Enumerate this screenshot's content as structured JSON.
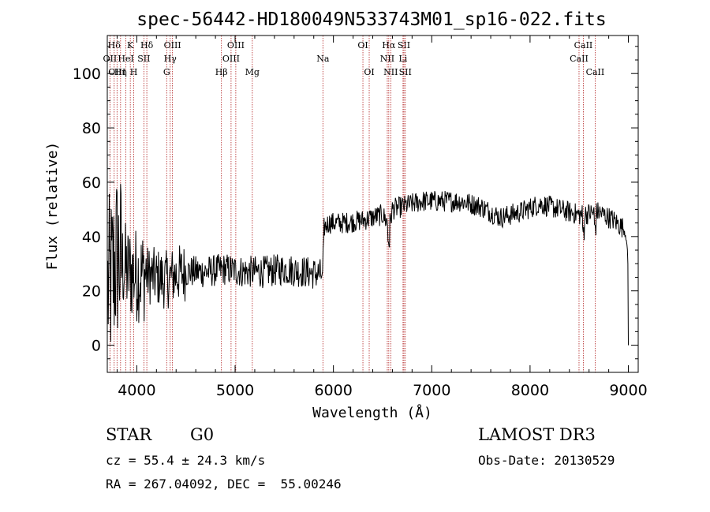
{
  "chart_data": {
    "type": "line",
    "title": "spec-56442-HD180049N533743M01_sp16-022.fits",
    "xlabel": "Wavelength (Å)",
    "ylabel": "Flux (relative)",
    "xlim": [
      3700,
      9100
    ],
    "ylim": [
      -10,
      114
    ],
    "x_ticks": [
      4000,
      5000,
      6000,
      7000,
      8000,
      9000
    ],
    "x_tick_labels": [
      "4000",
      "5000",
      "6000",
      "7000",
      "8000",
      "9000"
    ],
    "y_ticks": [
      0,
      20,
      40,
      60,
      80,
      100
    ],
    "y_tick_labels": [
      "0",
      "20",
      "40",
      "60",
      "80",
      "100"
    ],
    "spectrum_anchors": {
      "x": [
        3700,
        3750,
        3800,
        3850,
        3900,
        4000,
        4100,
        4200,
        4300,
        4400,
        4500,
        4700,
        4900,
        5100,
        5300,
        5500,
        5700,
        5880,
        5900,
        5950,
        6100,
        6300,
        6500,
        6570,
        6600,
        6700,
        6900,
        7100,
        7300,
        7500,
        7700,
        7900,
        8100,
        8300,
        8500,
        8700,
        8850,
        8950,
        8980,
        8995,
        9000
      ],
      "y": [
        20,
        25,
        33,
        30,
        27,
        26,
        26,
        25,
        24,
        26,
        27,
        27,
        28,
        27,
        27,
        28,
        27,
        26,
        43,
        45,
        45,
        46,
        48,
        44,
        50,
        51,
        53,
        53,
        53,
        51,
        47,
        49,
        52,
        50,
        48,
        49,
        46,
        43,
        40,
        30,
        0
      ]
    },
    "spectral_lines": [
      {
        "name": "Hδ",
        "x": 3770,
        "row": 0
      },
      {
        "name": "K",
        "x": 3934,
        "row": 0
      },
      {
        "name": "Hδ",
        "x": 4102,
        "row": 0
      },
      {
        "name": "OIII",
        "x": 4363,
        "row": 0
      },
      {
        "name": "OIII",
        "x": 5007,
        "row": 0
      },
      {
        "name": "OI",
        "x": 6300,
        "row": 0
      },
      {
        "name": "Hα",
        "x": 6563,
        "row": 0
      },
      {
        "name": "SII",
        "x": 6717,
        "row": 0
      },
      {
        "name": "CaII",
        "x": 8542,
        "row": 0
      },
      {
        "name": "OII",
        "x": 3727,
        "row": 1
      },
      {
        "name": "HeI",
        "x": 3889,
        "row": 1
      },
      {
        "name": "SII",
        "x": 4072,
        "row": 1
      },
      {
        "name": "Hγ",
        "x": 4340,
        "row": 1
      },
      {
        "name": "OIII",
        "x": 4959,
        "row": 1
      },
      {
        "name": "Na",
        "x": 5893,
        "row": 1
      },
      {
        "name": "NII",
        "x": 6548,
        "row": 1
      },
      {
        "name": "Li",
        "x": 6708,
        "row": 1
      },
      {
        "name": "CaII",
        "x": 8498,
        "row": 1
      },
      {
        "name": "OIII",
        "x": 3799,
        "row": 2
      },
      {
        "name": "Hη",
        "x": 3835,
        "row": 2
      },
      {
        "name": "H",
        "x": 3969,
        "row": 2
      },
      {
        "name": "G",
        "x": 4304,
        "row": 2
      },
      {
        "name": "Hβ",
        "x": 4861,
        "row": 2
      },
      {
        "name": "Mg",
        "x": 5175,
        "row": 2
      },
      {
        "name": "OI",
        "x": 6364,
        "row": 2
      },
      {
        "name": "NII",
        "x": 6583,
        "row": 2
      },
      {
        "name": "SII",
        "x": 6731,
        "row": 2
      },
      {
        "name": "CaII",
        "x": 8662,
        "row": 2
      }
    ],
    "grid": false,
    "legend": "none"
  },
  "footer": {
    "object_class": "STAR",
    "subclass": "G0",
    "survey": "LAMOST DR3",
    "redshift": "cz = 55.4 ± 24.3 km/s",
    "obs_date": "Obs-Date: 20130529",
    "coords": "RA = 267.04092, DEC =  55.00246"
  },
  "colors": {
    "spectrum": "#000000",
    "line_marker": "#b22222",
    "axes": "#000000"
  }
}
